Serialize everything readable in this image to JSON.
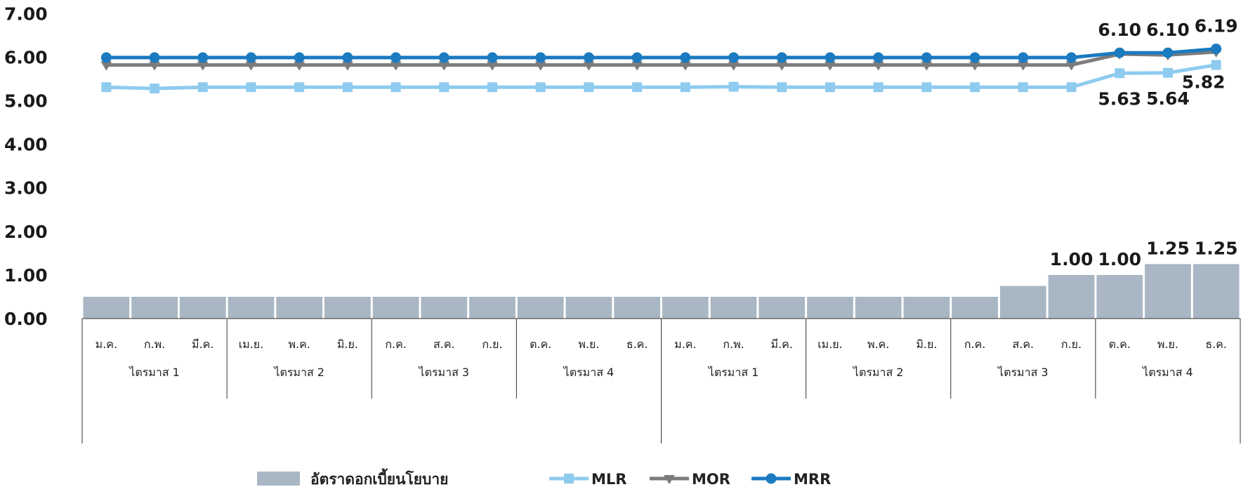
{
  "chart_data": {
    "type": "bar",
    "months": [
      "ม.ค.",
      "ก.พ.",
      "มี.ค.",
      "เม.ย.",
      "พ.ค.",
      "มิ.ย.",
      "ก.ค.",
      "ส.ค.",
      "ก.ย.",
      "ต.ค.",
      "พ.ย.",
      "ธ.ค.",
      "ม.ค.",
      "ก.พ.",
      "มี.ค.",
      "เม.ย.",
      "พ.ค.",
      "มิ.ย.",
      "ก.ค.",
      "ส.ค.",
      "ก.ย.",
      "ต.ค.",
      "พ.ย.",
      "ธ.ค."
    ],
    "quarters": [
      "ไตรมาส 1",
      "ไตรมาส 2",
      "ไตรมาส 3",
      "ไตรมาส 4",
      "ไตรมาส 1",
      "ไตรมาส 2",
      "ไตรมาส 3",
      "ไตรมาส 4"
    ],
    "yticks": [
      "0.00",
      "1.00",
      "2.00",
      "3.00",
      "4.00",
      "5.00",
      "6.00",
      "7.00"
    ],
    "ylim": [
      0,
      7
    ],
    "series": [
      {
        "name": "อัตราดอกเบี้ยนโยบาย",
        "kind": "bar",
        "color": "#a9b6c3",
        "values": [
          0.5,
          0.5,
          0.5,
          0.5,
          0.5,
          0.5,
          0.5,
          0.5,
          0.5,
          0.5,
          0.5,
          0.5,
          0.5,
          0.5,
          0.5,
          0.5,
          0.5,
          0.5,
          0.5,
          0.75,
          1.0,
          1.0,
          1.25,
          1.25
        ],
        "labels": [
          null,
          null,
          null,
          null,
          null,
          null,
          null,
          null,
          null,
          null,
          null,
          null,
          null,
          null,
          null,
          null,
          null,
          null,
          null,
          null,
          "1.00",
          "1.00",
          "1.25",
          "1.25"
        ]
      },
      {
        "name": "MLR",
        "kind": "line",
        "marker": "square",
        "color": "#8ecbef",
        "values": [
          5.31,
          5.28,
          5.31,
          5.31,
          5.31,
          5.31,
          5.31,
          5.31,
          5.31,
          5.31,
          5.31,
          5.31,
          5.31,
          5.32,
          5.31,
          5.31,
          5.31,
          5.31,
          5.31,
          5.31,
          5.31,
          5.63,
          5.64,
          5.82
        ],
        "labels": [
          null,
          null,
          null,
          null,
          null,
          null,
          null,
          null,
          null,
          null,
          null,
          null,
          null,
          null,
          null,
          null,
          null,
          null,
          null,
          null,
          null,
          "5.63",
          "5.64",
          "5.82"
        ]
      },
      {
        "name": "MOR",
        "kind": "line",
        "marker": "triangle-down",
        "color": "#7c7c7c",
        "values": [
          5.82,
          5.82,
          5.82,
          5.82,
          5.82,
          5.82,
          5.82,
          5.82,
          5.82,
          5.82,
          5.82,
          5.82,
          5.82,
          5.82,
          5.82,
          5.82,
          5.82,
          5.82,
          5.82,
          5.82,
          5.82,
          6.07,
          6.05,
          6.12
        ],
        "labels": []
      },
      {
        "name": "MRR",
        "kind": "line",
        "marker": "circle",
        "color": "#1b7ac0",
        "values": [
          5.99,
          5.99,
          5.99,
          5.99,
          5.99,
          5.99,
          5.99,
          5.99,
          5.99,
          5.99,
          5.99,
          5.99,
          5.99,
          5.99,
          5.99,
          5.99,
          5.99,
          5.99,
          5.99,
          5.99,
          5.99,
          6.1,
          6.1,
          6.19
        ],
        "labels": [
          null,
          null,
          null,
          null,
          null,
          null,
          null,
          null,
          null,
          null,
          null,
          null,
          null,
          null,
          null,
          null,
          null,
          null,
          null,
          null,
          null,
          "6.10",
          "6.10",
          "6.19"
        ]
      }
    ],
    "legend_position": "bottom",
    "grid": false
  }
}
